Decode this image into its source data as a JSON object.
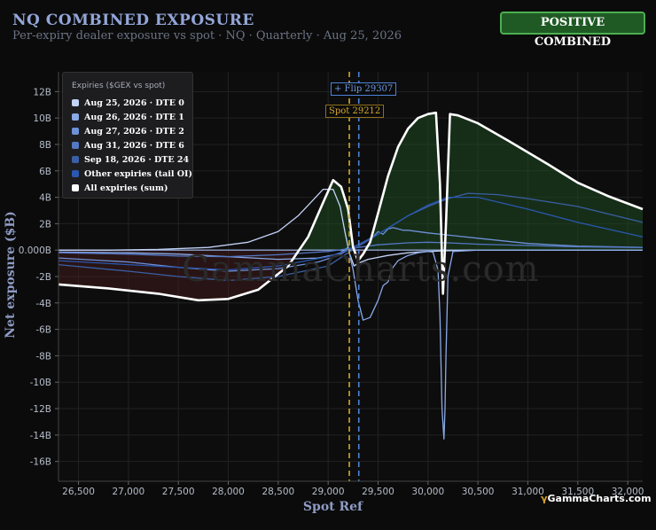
{
  "header": {
    "title": "NQ COMBINED EXPOSURE",
    "subtitle": "Per-expiry dealer exposure vs spot · NQ · Quarterly · Aug 25, 2026",
    "badge": "POSITIVE COMBINED"
  },
  "watermark": "GammaCharts.com",
  "brand": {
    "glyph": "γ",
    "text": "GammaCharts.com"
  },
  "colors": {
    "background": "#0b0b0b",
    "grid": "#222222",
    "spot": "#d4a52c",
    "flip": "#4e82d6",
    "sum": "#ffffff",
    "positive_fill": "#1f4a22",
    "negative_fill": "#4a1c1c",
    "badge_bg": "#1f5a24"
  },
  "chart_data": {
    "type": "line",
    "xlabel": "Spot Ref",
    "ylabel": "Net exposure ($B)",
    "xlim": [
      26300,
      32150
    ],
    "ylim": [
      -17.5,
      13.5
    ],
    "x_ticks": [
      26500,
      27000,
      27500,
      28000,
      28500,
      29000,
      29500,
      30000,
      30500,
      31000,
      31500,
      32000
    ],
    "x_tick_labels": [
      "26,500",
      "27,000",
      "27,500",
      "28,000",
      "28,500",
      "29,000",
      "29,500",
      "30,000",
      "30,500",
      "31,000",
      "31,500",
      "32,000"
    ],
    "y_ticks": [
      12,
      10,
      8,
      6,
      4,
      2,
      0,
      -2,
      -4,
      -6,
      -8,
      -10,
      -12,
      -14,
      -16
    ],
    "y_tick_labels": [
      "12B",
      "10B",
      "8B",
      "6B",
      "4B",
      "2B",
      "0.000B",
      "-2B",
      "-4B",
      "-6B",
      "-8B",
      "-10B",
      "-12B",
      "-14B",
      "-16B"
    ],
    "legend_title": "Expiries ($GEX vs spot)",
    "legend_position": "top-left",
    "grid": true,
    "annotations": [
      {
        "label": "Spot 29212",
        "x": 29212,
        "color": "#d4a52c",
        "style": "dashed"
      },
      {
        "label": "+ Flip 29307",
        "x": 29307,
        "color": "#4e82d6",
        "style": "dashed"
      }
    ],
    "series": [
      {
        "name": "Aug 25, 2026 · DTE 0",
        "color": "#c3d3f6",
        "width": 1.3,
        "x": [
          26300,
          26800,
          27300,
          27800,
          28200,
          28500,
          28700,
          28850,
          28950,
          29050,
          29120,
          29170,
          29212,
          29260,
          29300,
          29400,
          29600,
          29800,
          30000,
          30200,
          30500,
          31000,
          31500,
          32150
        ],
        "y": [
          0.0,
          0.0,
          0.05,
          0.2,
          0.6,
          1.4,
          2.6,
          3.8,
          4.6,
          4.6,
          3.3,
          1.3,
          -0.2,
          -1.2,
          -1.0,
          -0.7,
          -0.4,
          -0.2,
          -0.1,
          -0.05,
          0,
          0,
          0,
          0
        ]
      },
      {
        "name": "Aug 26, 2026 · DTE 1",
        "color": "#8aa9e6",
        "width": 1.3,
        "x": [
          26300,
          27000,
          27500,
          28000,
          28500,
          28900,
          29100,
          29200,
          29250,
          29300,
          29350,
          29420,
          29500,
          29550,
          29600,
          29650,
          29700,
          29800,
          29900,
          30000,
          30050,
          30100,
          30120,
          30140,
          30160,
          30170,
          30180,
          30200,
          30250,
          30500,
          31000,
          32150
        ],
        "y": [
          -0.15,
          -0.2,
          -0.3,
          -0.5,
          -0.7,
          -0.6,
          -0.3,
          0.2,
          -1.5,
          -3.8,
          -5.3,
          -5.1,
          -3.8,
          -2.7,
          -2.4,
          -1.3,
          -0.8,
          -0.4,
          -0.2,
          -0.1,
          -0.15,
          -1.5,
          -5,
          -12,
          -14.3,
          -12,
          -8,
          -2,
          -0.1,
          0,
          0,
          0
        ]
      },
      {
        "name": "Aug 27, 2026 · DTE 2",
        "color": "#6d90d8",
        "width": 1.3,
        "x": [
          26300,
          27000,
          27500,
          28000,
          28500,
          28900,
          29100,
          29200,
          29300,
          29400,
          29450,
          29500,
          29550,
          29600,
          29650,
          29700,
          29750,
          29800,
          29900,
          30000,
          30500,
          31000,
          31500,
          32150
        ],
        "y": [
          -0.6,
          -0.9,
          -1.3,
          -1.6,
          -1.4,
          -0.9,
          -0.4,
          0,
          0.4,
          0.8,
          1.0,
          1.4,
          1.2,
          1.6,
          1.7,
          1.6,
          1.5,
          1.5,
          1.4,
          1.3,
          0.9,
          0.5,
          0.3,
          0.2
        ]
      },
      {
        "name": "Aug 31, 2026 · DTE 6",
        "color": "#5478c4",
        "width": 1.3,
        "x": [
          26300,
          27000,
          27500,
          28000,
          28500,
          29000,
          29200,
          29500,
          29800,
          30000,
          30200,
          30500,
          31000,
          31500,
          32150
        ],
        "y": [
          -0.2,
          -0.3,
          -0.45,
          -0.5,
          -0.35,
          -0.1,
          0.1,
          0.4,
          0.55,
          0.6,
          0.55,
          0.45,
          0.35,
          0.25,
          0.2
        ]
      },
      {
        "name": "Sep 18, 2026 · DTE 24",
        "color": "#3a5fa6",
        "width": 1.3,
        "x": [
          26300,
          27000,
          27500,
          28000,
          28500,
          29000,
          29200,
          29500,
          29800,
          30000,
          30200,
          30400,
          30700,
          31000,
          31500,
          32150
        ],
        "y": [
          -1.1,
          -1.6,
          -2.0,
          -2.3,
          -2.0,
          -1.2,
          -0.2,
          1.2,
          2.6,
          3.3,
          3.9,
          4.3,
          4.2,
          3.9,
          3.3,
          2.1
        ]
      },
      {
        "name": "Other expiries (tail OI)",
        "color": "#2a57b0",
        "width": 1.3,
        "x": [
          26300,
          27000,
          27500,
          28000,
          28500,
          29000,
          29200,
          29500,
          29800,
          30000,
          30200,
          30500,
          31000,
          31500,
          32150
        ],
        "y": [
          -0.8,
          -1.1,
          -1.3,
          -1.5,
          -1.2,
          -0.5,
          0,
          1.2,
          2.6,
          3.4,
          4.0,
          4.0,
          3.1,
          2.1,
          1.0
        ]
      },
      {
        "name": "All expiries (sum)",
        "color": "#ffffff",
        "width": 2.6,
        "x": [
          26300,
          26800,
          27300,
          27700,
          28000,
          28300,
          28600,
          28800,
          28950,
          29050,
          29130,
          29200,
          29250,
          29300,
          29350,
          29420,
          29500,
          29600,
          29700,
          29800,
          29900,
          30000,
          30080,
          30120,
          30150,
          30180,
          30220,
          30300,
          30500,
          30800,
          31200,
          31500,
          31800,
          32150
        ],
        "y": [
          -2.6,
          -2.9,
          -3.3,
          -3.8,
          -3.7,
          -3.0,
          -1.2,
          1.0,
          3.6,
          5.3,
          4.8,
          3.1,
          0.2,
          -0.8,
          -0.3,
          0.6,
          2.8,
          5.6,
          7.8,
          9.2,
          10.0,
          10.3,
          10.4,
          5.0,
          -3.3,
          2.0,
          10.3,
          10.2,
          9.6,
          8.3,
          6.5,
          5.1,
          4.1,
          3.1
        ]
      }
    ]
  }
}
